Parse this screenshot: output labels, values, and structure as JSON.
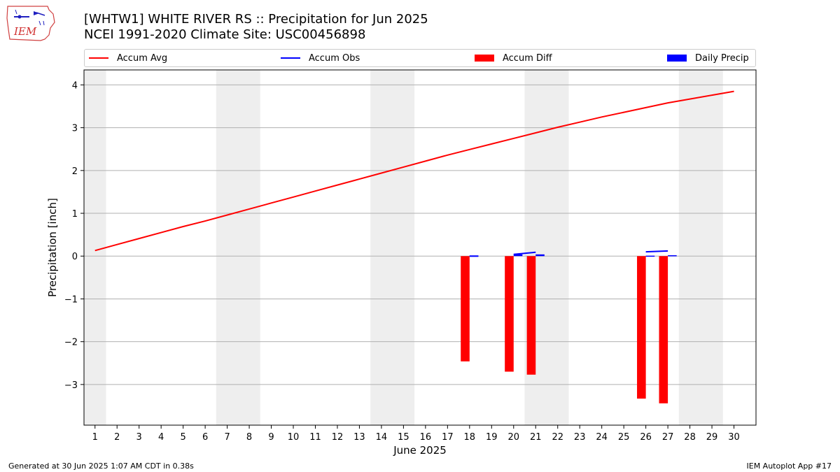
{
  "header": {
    "title": "[WHTW1] WHITE RIVER RS :: Precipitation for Jun 2025",
    "subtitle": "NCEI 1991-2020 Climate Site: USC00456898"
  },
  "logo": {
    "text": "IEM"
  },
  "footer": {
    "left": "Generated at 30 Jun 2025 1:07 AM CDT in 0.38s",
    "right": "IEM Autoplot App #17"
  },
  "colors": {
    "avg": "#ff0000",
    "obs": "#0000ff",
    "diff": "#ff0000",
    "daily": "#0000ff",
    "weekend": "#eeeeee",
    "grid": "#b0b0b0"
  },
  "chart_data": {
    "type": "bar",
    "title": "[WHTW1] WHITE RIVER RS :: Precipitation for Jun 2025",
    "subtitle": "NCEI 1991-2020 Climate Site: USC00456898",
    "xlabel": "June 2025",
    "ylabel": "Precipitation [inch]",
    "xlim": [
      0.5,
      31
    ],
    "ylim": [
      -3.95,
      4.35
    ],
    "x_ticks": [
      "1",
      "2",
      "3",
      "4",
      "5",
      "6",
      "7",
      "8",
      "9",
      "10",
      "11",
      "12",
      "13",
      "14",
      "15",
      "16",
      "17",
      "18",
      "19",
      "20",
      "21",
      "22",
      "23",
      "24",
      "25",
      "26",
      "27",
      "28",
      "29",
      "30"
    ],
    "y_ticks": [
      -3,
      -2,
      -1,
      0,
      1,
      2,
      3,
      4
    ],
    "y_tick_labels": [
      "−3",
      "−2",
      "−1",
      "0",
      "1",
      "2",
      "3",
      "4"
    ],
    "grid": "horizontal",
    "legend": [
      "Accum Avg",
      "Accum Obs",
      "Accum Diff",
      "Daily Precip"
    ],
    "legend_placement": "top, above plot",
    "weekend_shading": [
      [
        0.5,
        1.5
      ],
      [
        6.5,
        8.5
      ],
      [
        13.5,
        15.5
      ],
      [
        20.5,
        22.5
      ],
      [
        27.5,
        29.5
      ]
    ],
    "series": [
      {
        "name": "Accum Avg",
        "type": "line",
        "x": [
          1,
          2,
          3,
          4,
          5,
          6,
          7,
          8,
          9,
          10,
          11,
          12,
          13,
          14,
          15,
          16,
          17,
          18,
          19,
          20,
          21,
          22,
          23,
          24,
          25,
          26,
          27,
          28,
          29,
          30
        ],
        "values": [
          0.13,
          0.27,
          0.41,
          0.55,
          0.69,
          0.82,
          0.96,
          1.1,
          1.24,
          1.38,
          1.52,
          1.66,
          1.8,
          1.94,
          2.08,
          2.22,
          2.36,
          2.49,
          2.62,
          2.75,
          2.88,
          3.01,
          3.13,
          3.25,
          3.36,
          3.47,
          3.58,
          3.67,
          3.76,
          3.85
        ]
      },
      {
        "name": "Accum Obs",
        "type": "line_segments",
        "segments": [
          {
            "x": [
              18.0,
              18.4
            ],
            "values": [
              0.0,
              0.0
            ]
          },
          {
            "x": [
              20.0,
              21.0
            ],
            "values": [
              0.04,
              0.09
            ]
          },
          {
            "x": [
              26.0,
              27.0
            ],
            "values": [
              0.1,
              0.12
            ]
          }
        ]
      },
      {
        "name": "Accum Diff",
        "type": "bar",
        "x": [
          17.8,
          19.8,
          20.8,
          25.8,
          26.8
        ],
        "values": [
          -2.46,
          -2.7,
          -2.77,
          -3.33,
          -3.44
        ]
      },
      {
        "name": "Daily Precip",
        "type": "bar",
        "x": [
          18.2,
          20.2,
          21.2,
          26.2,
          27.2
        ],
        "values": [
          0.01,
          0.04,
          0.04,
          0.01,
          0.02
        ]
      }
    ]
  }
}
